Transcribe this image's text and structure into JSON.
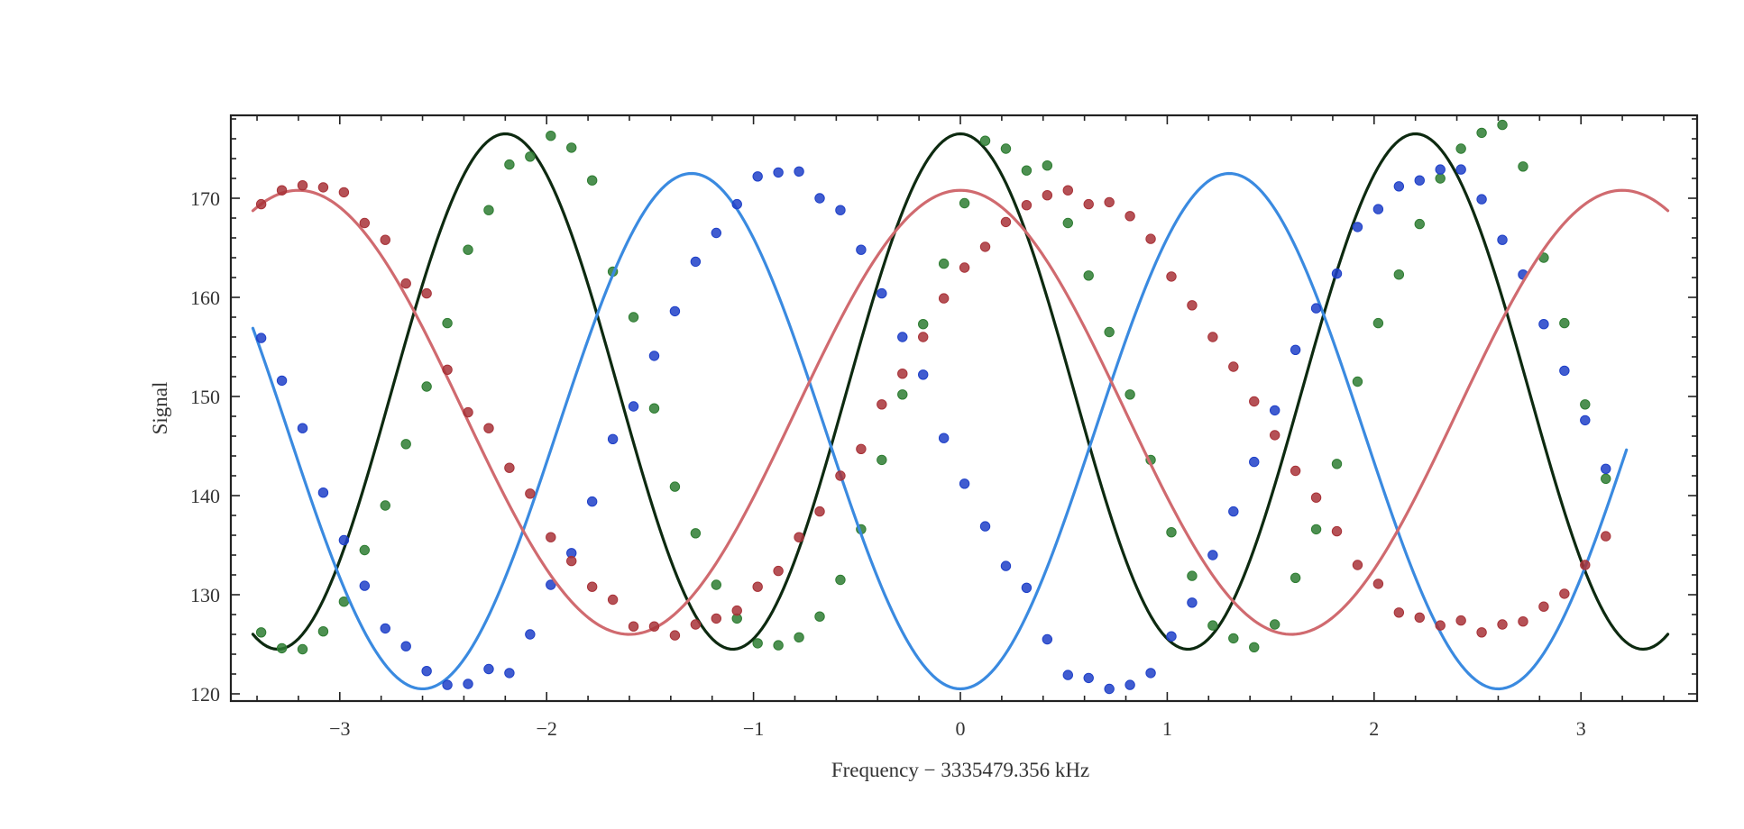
{
  "chart_data": {
    "type": "scatter",
    "title": "",
    "xlabel": "Frequency − 3335479.356 kHz",
    "ylabel": "Signal",
    "xlim": [
      -3.5,
      3.6
    ],
    "ylim": [
      119.5,
      178.5
    ],
    "xticks": [
      -3,
      -2,
      -1,
      0,
      1,
      2,
      3
    ],
    "xtick_labels": [
      "−3",
      "−2",
      "−1",
      "0",
      "1",
      "2",
      "3"
    ],
    "yticks": [
      120,
      130,
      140,
      150,
      160,
      170
    ],
    "ytick_labels": [
      "120",
      "130",
      "140",
      "150",
      "160",
      "170"
    ],
    "grid": false,
    "legend": "none",
    "series": [
      {
        "name": "green",
        "marker_color": "#2e7d32",
        "line_color": "#0d2a10",
        "fit": {
          "offset": 150.5,
          "amplitude": 26.0,
          "period": 2.2,
          "phase": 0
        },
        "fit_range": [
          -3.42,
          3.42
        ],
        "x": [
          -3.38,
          -3.28,
          -3.18,
          -3.08,
          -2.98,
          -2.88,
          -2.78,
          -2.68,
          -2.58,
          -2.48,
          -2.38,
          -2.28,
          -2.18,
          -2.08,
          -1.98,
          -1.88,
          -1.78,
          -1.68,
          -1.58,
          -1.48,
          -1.38,
          -1.28,
          -1.18,
          -1.08,
          -0.98,
          -0.88,
          -0.78,
          -0.68,
          -0.58,
          -0.48,
          -0.38,
          -0.28,
          -0.18,
          -0.08,
          0.02,
          0.12,
          0.22,
          0.32,
          0.42,
          0.52,
          0.62,
          0.72,
          0.82,
          0.92,
          1.02,
          1.12,
          1.22,
          1.32,
          1.42,
          1.52,
          1.62,
          1.72,
          1.82,
          1.92,
          2.02,
          2.12,
          2.22,
          2.32,
          2.42,
          2.52,
          2.62,
          2.72,
          2.82,
          2.92,
          3.02,
          3.12
        ],
        "y": [
          126.2,
          124.6,
          124.5,
          126.3,
          129.3,
          134.5,
          139.0,
          145.2,
          151.0,
          157.4,
          164.8,
          168.8,
          173.4,
          174.2,
          176.3,
          175.1,
          171.8,
          162.6,
          158.0,
          148.8,
          140.9,
          136.2,
          131.0,
          127.6,
          125.1,
          124.9,
          125.7,
          127.8,
          131.5,
          136.6,
          143.6,
          150.2,
          157.3,
          163.4,
          169.5,
          175.8,
          175.0,
          172.8,
          173.3,
          167.5,
          162.2,
          156.5,
          150.2,
          143.6,
          136.3,
          131.9,
          126.9,
          125.6,
          124.7,
          127.0,
          131.7,
          136.6,
          143.2,
          151.5,
          157.4,
          162.3,
          167.4,
          172.0,
          175.0,
          176.6,
          177.4,
          173.2,
          164.0,
          157.4,
          149.2,
          141.7
        ]
      },
      {
        "name": "blue",
        "marker_color": "#1e40c8",
        "line_color": "#3a8ae0",
        "fit": {
          "offset": 146.5,
          "amplitude": -26.0,
          "period": 2.6,
          "phase": 0
        },
        "fit_range": [
          -3.42,
          3.22
        ],
        "x": [
          -3.38,
          -3.28,
          -3.18,
          -3.08,
          -2.98,
          -2.88,
          -2.78,
          -2.68,
          -2.58,
          -2.48,
          -2.38,
          -2.28,
          -2.18,
          -2.08,
          -1.98,
          -1.88,
          -1.78,
          -1.68,
          -1.58,
          -1.48,
          -1.38,
          -1.28,
          -1.18,
          -1.08,
          -0.98,
          -0.88,
          -0.78,
          -0.68,
          -0.58,
          -0.48,
          -0.38,
          -0.28,
          -0.18,
          -0.08,
          0.02,
          0.12,
          0.22,
          0.32,
          0.42,
          0.52,
          0.62,
          0.72,
          0.82,
          0.92,
          1.02,
          1.12,
          1.22,
          1.32,
          1.42,
          1.52,
          1.62,
          1.72,
          1.82,
          1.92,
          2.02,
          2.12,
          2.22,
          2.32,
          2.42,
          2.52,
          2.62,
          2.72,
          2.82,
          2.92,
          3.02,
          3.12
        ],
        "y": [
          155.9,
          151.6,
          146.8,
          140.3,
          135.5,
          130.9,
          126.6,
          124.8,
          122.3,
          120.9,
          121.0,
          122.5,
          122.1,
          126.0,
          131.0,
          134.2,
          139.4,
          145.7,
          149.0,
          154.1,
          158.6,
          163.6,
          166.5,
          169.4,
          172.2,
          172.6,
          172.7,
          170.0,
          168.8,
          164.8,
          160.4,
          156.0,
          152.2,
          145.8,
          141.2,
          136.9,
          132.9,
          130.7,
          125.5,
          121.9,
          121.6,
          120.5,
          120.9,
          122.1,
          125.8,
          129.2,
          134.0,
          138.4,
          143.4,
          148.6,
          154.7,
          158.9,
          162.4,
          167.1,
          168.9,
          171.2,
          171.8,
          172.9,
          172.9,
          169.9,
          165.8,
          162.3,
          157.3,
          152.6,
          147.6,
          142.7
        ]
      },
      {
        "name": "red",
        "marker_color": "#a83238",
        "line_color": "#d06a6f",
        "fit": {
          "offset": 148.4,
          "amplitude": 22.4,
          "period": 3.2,
          "phase": 0
        },
        "fit_range": [
          -3.42,
          3.42
        ],
        "x": [
          -3.38,
          -3.28,
          -3.18,
          -3.08,
          -2.98,
          -2.88,
          -2.78,
          -2.68,
          -2.58,
          -2.48,
          -2.38,
          -2.28,
          -2.18,
          -2.08,
          -1.98,
          -1.88,
          -1.78,
          -1.68,
          -1.58,
          -1.48,
          -1.38,
          -1.28,
          -1.18,
          -1.08,
          -0.98,
          -0.88,
          -0.78,
          -0.68,
          -0.58,
          -0.48,
          -0.38,
          -0.28,
          -0.18,
          -0.08,
          0.02,
          0.12,
          0.22,
          0.32,
          0.42,
          0.52,
          0.62,
          0.72,
          0.82,
          0.92,
          1.02,
          1.12,
          1.22,
          1.32,
          1.42,
          1.52,
          1.62,
          1.72,
          1.82,
          1.92,
          2.02,
          2.12,
          2.22,
          2.32,
          2.42,
          2.52,
          2.62,
          2.72,
          2.82,
          2.92,
          3.02,
          3.12
        ],
        "y": [
          169.4,
          170.8,
          171.3,
          171.1,
          170.6,
          167.5,
          165.8,
          161.4,
          160.4,
          152.7,
          148.4,
          146.8,
          142.8,
          140.2,
          135.8,
          133.4,
          130.8,
          129.5,
          126.8,
          126.8,
          125.9,
          127.0,
          127.6,
          128.4,
          130.8,
          132.4,
          135.8,
          138.4,
          142.0,
          144.7,
          149.2,
          152.3,
          156.0,
          159.9,
          163.0,
          165.1,
          167.6,
          169.3,
          170.3,
          170.8,
          169.4,
          169.6,
          168.2,
          165.9,
          162.1,
          159.2,
          156.0,
          153.0,
          149.5,
          146.1,
          142.5,
          139.8,
          136.4,
          133.0,
          131.1,
          128.2,
          127.7,
          126.9,
          127.4,
          126.2,
          127.0,
          127.3,
          128.8,
          130.1,
          133.0,
          135.9
        ]
      }
    ]
  },
  "axes": {
    "xlabel": "Frequency − 3335479.356 kHz",
    "ylabel": "Signal"
  }
}
